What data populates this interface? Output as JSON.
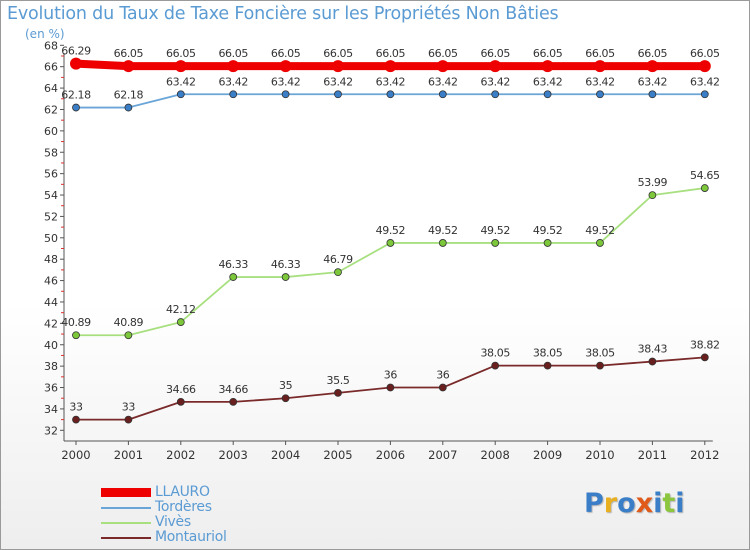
{
  "title": "Evolution du Taux de Taxe Foncière sur les Propriétés Non Bâties",
  "unit_label": "(en %)",
  "logo": {
    "letters": [
      {
        "ch": "P",
        "color": "#3b7ec8"
      },
      {
        "ch": "r",
        "color": "#e8b020"
      },
      {
        "ch": "o",
        "color": "#3b7ec8"
      },
      {
        "ch": "x",
        "color": "#e05a1a"
      },
      {
        "ch": "i",
        "color": "#3b7ec8"
      },
      {
        "ch": "t",
        "color": "#8cc63f"
      },
      {
        "ch": "i",
        "color": "#3b7ec8"
      }
    ]
  },
  "chart_data": {
    "type": "line",
    "title": "Evolution du Taux de Taxe Foncière sur les Propriétés Non Bâties",
    "ylabel": "(en %)",
    "xlabel": "",
    "ylim": [
      31,
      67
    ],
    "yticks": [
      32,
      34,
      36,
      38,
      40,
      42,
      44,
      46,
      48,
      50,
      52,
      54,
      56,
      58,
      60,
      62,
      64,
      66,
      68
    ],
    "categories": [
      "2000",
      "2001",
      "2002",
      "2003",
      "2004",
      "2005",
      "2006",
      "2007",
      "2008",
      "2009",
      "2010",
      "2011",
      "2012"
    ],
    "grid": false,
    "legend_position": "bottom-left",
    "series": [
      {
        "name": "LLAURO",
        "color": "#ee0000",
        "marker": "#ee0000",
        "bold": true,
        "values": [
          66.29,
          66.05,
          66.05,
          66.05,
          66.05,
          66.05,
          66.05,
          66.05,
          66.05,
          66.05,
          66.05,
          66.05,
          66.05
        ],
        "labels": [
          "66.29",
          "66.05",
          "66.05",
          "66.05",
          "66.05",
          "66.05",
          "66.05",
          "66.05",
          "66.05",
          "66.05",
          "66.05",
          "66.05",
          "66.05"
        ]
      },
      {
        "name": "Tordères",
        "color": "#6aa5d8",
        "marker": "#3b7ec8",
        "bold": false,
        "values": [
          62.18,
          62.18,
          63.42,
          63.42,
          63.42,
          63.42,
          63.42,
          63.42,
          63.42,
          63.42,
          63.42,
          63.42,
          63.42
        ],
        "labels": [
          "62.18",
          "62.18",
          "63.42",
          "63.42",
          "63.42",
          "63.42",
          "63.42",
          "63.42",
          "63.42",
          "63.42",
          "63.42",
          "63.42",
          "63.42"
        ]
      },
      {
        "name": "Vivès",
        "color": "#a8e080",
        "marker": "#7cc83a",
        "bold": false,
        "values": [
          40.89,
          40.89,
          42.12,
          46.33,
          46.33,
          46.79,
          49.52,
          49.52,
          49.52,
          49.52,
          49.52,
          53.99,
          54.65
        ],
        "labels": [
          "40.89",
          "40.89",
          "42.12",
          "46.33",
          "46.33",
          "46.79",
          "49.52",
          "49.52",
          "49.52",
          "49.52",
          "49.52",
          "53.99",
          "54.65"
        ]
      },
      {
        "name": "Montauriol",
        "color": "#7a2a2a",
        "marker": "#6a1f1f",
        "bold": false,
        "values": [
          33,
          33,
          34.66,
          34.66,
          35,
          35.5,
          36,
          36,
          38.05,
          38.05,
          38.05,
          38.43,
          38.82
        ],
        "labels": [
          "33",
          "33",
          "34.66",
          "34.66",
          "35",
          "35.5",
          "36",
          "36",
          "38.05",
          "38.05",
          "38.05",
          "38.43",
          "38.82"
        ]
      }
    ]
  }
}
